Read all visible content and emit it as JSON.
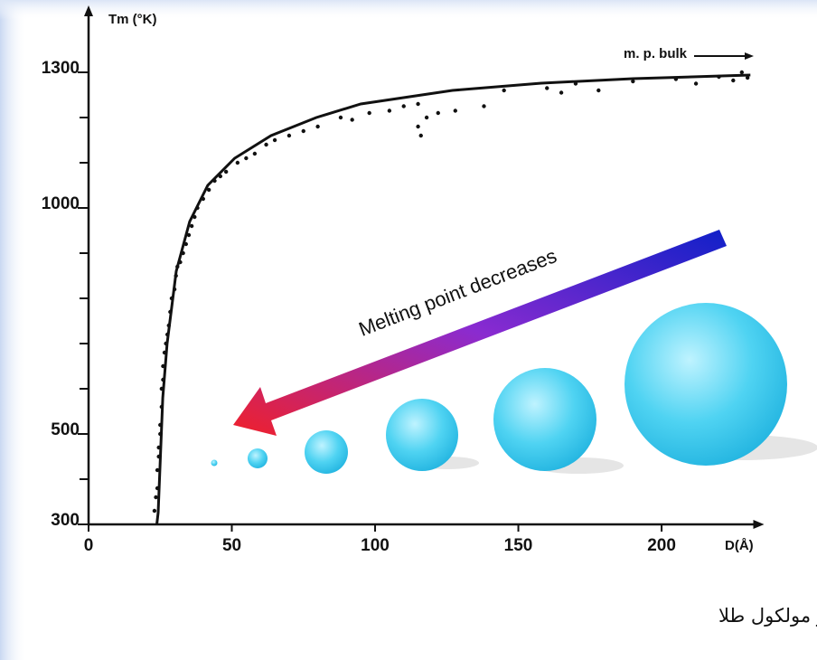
{
  "chart_data": {
    "type": "scatter",
    "y_label": "Tm (°K)",
    "x_label": "D(Å)",
    "bulk_label": "m. p. bulk",
    "annotation": "Melting point decreases",
    "caption": "نمودار بستگی مساحت سطح و نقطه ذوب به قطر ذره در مولکول طلا",
    "xlim": [
      0,
      232
    ],
    "ylim": [
      300,
      1440
    ],
    "xticks": [
      0,
      50,
      100,
      150,
      200
    ],
    "yticks": [
      300,
      500,
      1000,
      1300
    ],
    "minor_yticks": [
      400,
      600,
      700,
      800,
      900,
      1100,
      1200
    ],
    "color": "#111111",
    "fit": {
      "x": [
        23.8,
        24.3,
        25.9,
        27.4,
        30.6,
        35.3,
        41.6,
        51,
        63.7,
        79.5,
        95,
        127,
        158,
        190,
        231
      ],
      "y": [
        300,
        326,
        580,
        700,
        860,
        970,
        1050,
        1110,
        1160,
        1200,
        1230,
        1260,
        1276,
        1286,
        1294
      ]
    },
    "points": {
      "x": [
        23,
        23.5,
        24,
        24,
        24.5,
        24.5,
        25,
        25,
        25.5,
        25.5,
        26,
        26,
        26.5,
        27,
        27.5,
        28,
        28.5,
        29,
        30,
        30.5,
        31,
        32,
        33,
        34,
        35,
        36,
        37,
        38,
        40,
        42,
        44,
        46,
        48,
        52,
        55,
        58,
        62,
        65,
        70,
        75,
        80,
        88,
        92,
        98,
        105,
        110,
        115,
        115,
        116,
        118,
        122,
        128,
        138,
        145,
        160,
        165,
        170,
        178,
        190,
        205,
        212,
        220,
        225,
        228,
        230
      ],
      "y": [
        330,
        360,
        380,
        420,
        450,
        470,
        500,
        520,
        560,
        600,
        620,
        650,
        680,
        700,
        720,
        740,
        770,
        800,
        820,
        850,
        870,
        880,
        900,
        920,
        940,
        960,
        980,
        1000,
        1020,
        1040,
        1060,
        1070,
        1080,
        1100,
        1110,
        1120,
        1140,
        1150,
        1160,
        1170,
        1180,
        1200,
        1195,
        1210,
        1215,
        1225,
        1230,
        1180,
        1160,
        1200,
        1210,
        1215,
        1225,
        1260,
        1265,
        1255,
        1275,
        1260,
        1280,
        1285,
        1275,
        1290,
        1282,
        1300,
        1288
      ]
    }
  }
}
